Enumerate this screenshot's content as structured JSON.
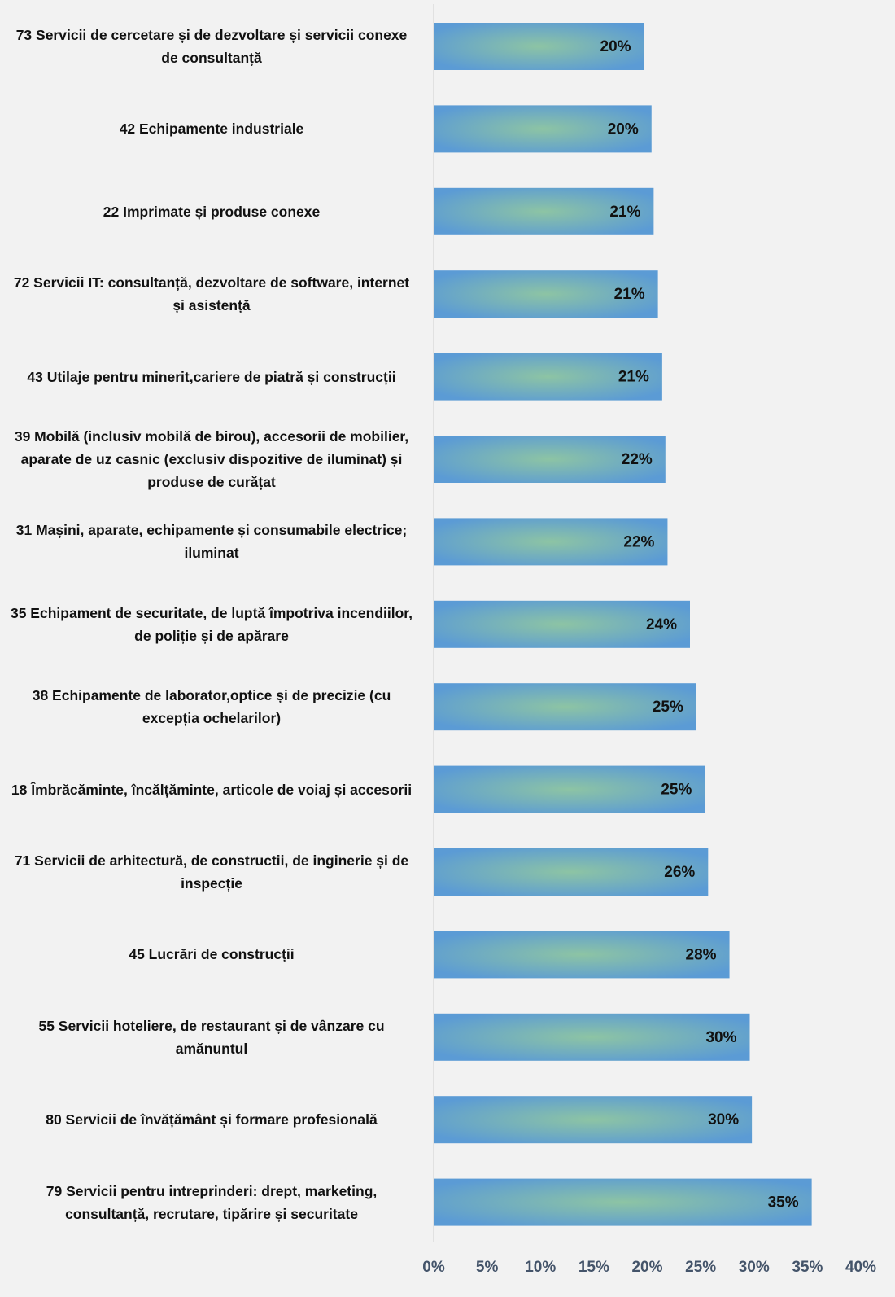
{
  "chart_data": {
    "type": "bar",
    "orientation": "horizontal",
    "categories": [
      "73 Servicii de cercetare și de dezvoltare și servicii conexe de consultanță",
      "42 Echipamente industriale",
      "22 Imprimate și produse conexe",
      "72 Servicii IT: consultanță, dezvoltare de software, internet și asistență",
      "43 Utilaje pentru minerit,cariere de piatră și construcții",
      "39 Mobilă (inclusiv mobilă de birou), accesorii de mobilier, aparate de uz casnic (exclusiv dispozitive de iluminat) și produse de curățat",
      "31 Mașini, aparate, echipamente și consumabile electrice; iluminat",
      "35 Echipament de securitate, de luptă împotriva incendiilor, de poliție și de apărare",
      "38 Echipamente de laborator,optice și de precizie (cu excepția ochelarilor)",
      "18 Îmbrăcăminte, încălțăminte, articole de voiaj și accesorii",
      "71 Servicii de arhitectură, de constructii, de inginerie și de inspecție",
      "45 Lucrări de construcții",
      "55 Servicii hoteliere, de restaurant și de vânzare cu amănuntul",
      "80  Servicii de învățământ și formare profesională",
      "79 Servicii pentru intreprinderi: drept, marketing, consultanță, recrutare, tipărire și securitate"
    ],
    "values": [
      19.7,
      20.4,
      20.6,
      21.0,
      21.4,
      21.7,
      21.9,
      24.0,
      24.6,
      25.4,
      25.7,
      27.7,
      29.6,
      29.8,
      35.4
    ],
    "value_labels": [
      "20%",
      "20%",
      "21%",
      "21%",
      "21%",
      "22%",
      "22%",
      "24%",
      "25%",
      "25%",
      "26%",
      "28%",
      "30%",
      "30%",
      "35%"
    ],
    "color": "#5b9bd5",
    "color_center": "#8dc4a4",
    "xlim": [
      0,
      40
    ],
    "xticks": [
      {
        "value": 0,
        "label": "0%"
      },
      {
        "value": 5,
        "label": "5%"
      },
      {
        "value": 10,
        "label": "10%"
      },
      {
        "value": 15,
        "label": "15%"
      },
      {
        "value": 20,
        "label": "20%"
      },
      {
        "value": 25,
        "label": "25%"
      },
      {
        "value": 30,
        "label": "30%"
      },
      {
        "value": 35,
        "label": "35%"
      },
      {
        "value": 40,
        "label": "40%"
      }
    ],
    "grid": false
  }
}
